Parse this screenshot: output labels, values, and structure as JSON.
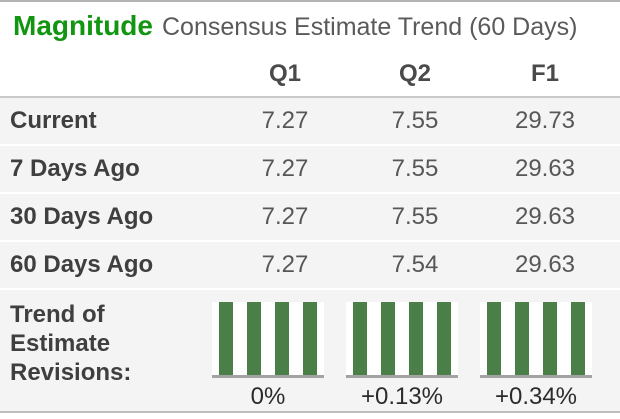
{
  "header": {
    "title": "Magnitude",
    "subtitle": "Consensus Estimate Trend (60 Days)"
  },
  "table": {
    "columns": [
      "Q1",
      "Q2",
      "F1"
    ],
    "rows": [
      {
        "label": "Current",
        "values": [
          "7.27",
          "7.55",
          "29.73"
        ]
      },
      {
        "label": "7 Days Ago",
        "values": [
          "7.27",
          "7.55",
          "29.63"
        ]
      },
      {
        "label": "30 Days Ago",
        "values": [
          "7.27",
          "7.55",
          "29.63"
        ]
      },
      {
        "label": "60 Days Ago",
        "values": [
          "7.27",
          "7.54",
          "29.63"
        ]
      }
    ]
  },
  "trend": {
    "label": "Trend of Estimate Revisions:",
    "label_lines": [
      "Trend of",
      "Estimate",
      "Revisions:"
    ],
    "charts": [
      {
        "column": "Q1",
        "percent": "0%",
        "bars": [
          100,
          100,
          100,
          100
        ]
      },
      {
        "column": "Q2",
        "percent": "+0.13%",
        "bars": [
          100,
          100,
          100,
          100
        ]
      },
      {
        "column": "F1",
        "percent": "+0.34%",
        "bars": [
          100,
          100,
          100,
          100
        ]
      }
    ]
  },
  "colors": {
    "title_green": "#129612",
    "subtitle_text": "#5a5a5a",
    "header_text": "#4a4a4a",
    "label_text": "#3f3f3f",
    "value_text": "#575757",
    "percent_text": "#2b2b2b",
    "bar_green": "#4a8048",
    "baseline": "#a3a3a3",
    "row_bg": "#f4f4f4",
    "border_top": "#b3b3b3",
    "border_bottom": "#bdbdbd",
    "header_border": "#c9c9c9"
  }
}
